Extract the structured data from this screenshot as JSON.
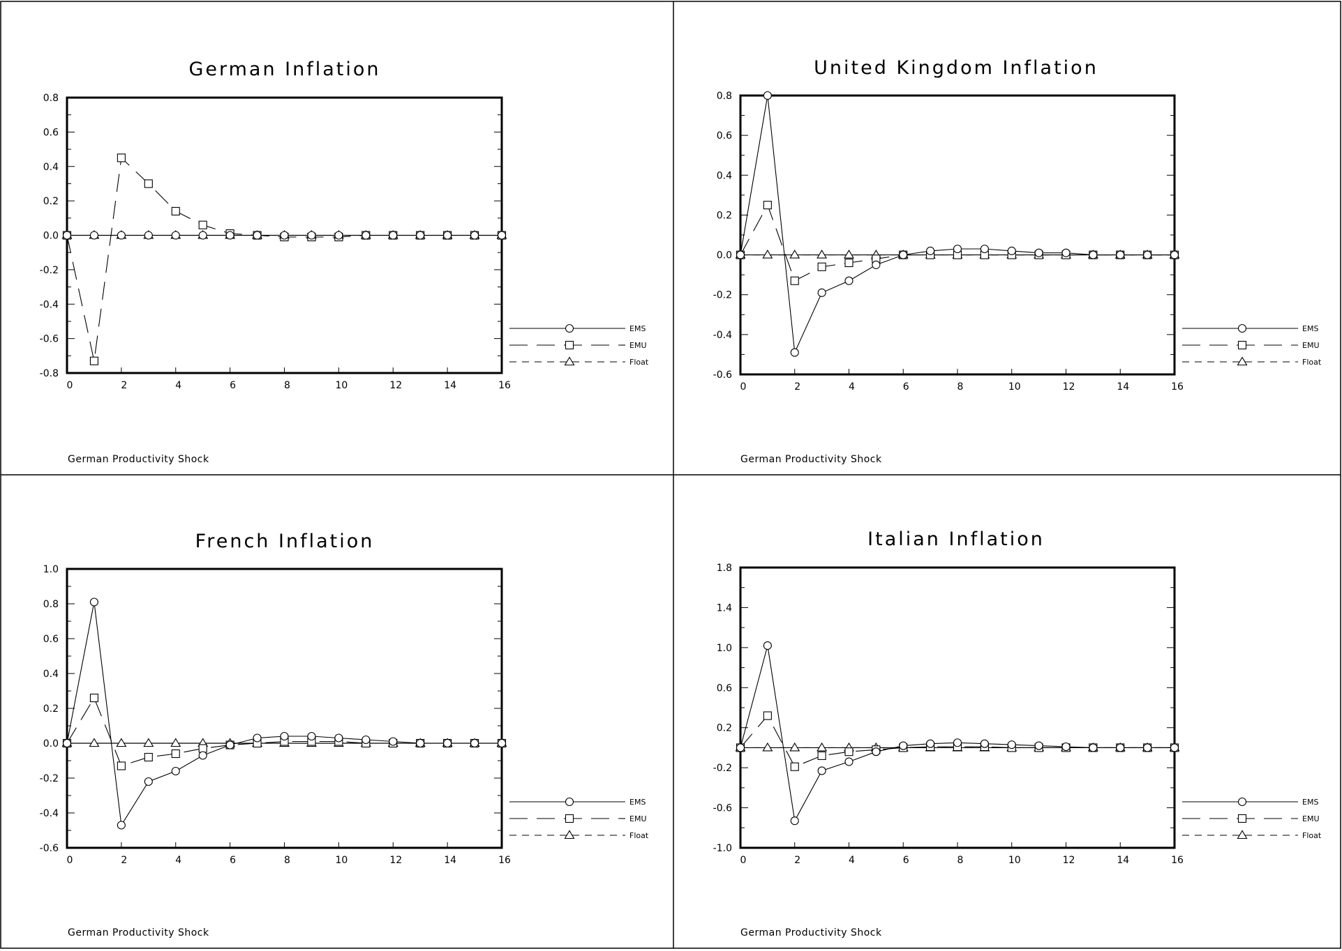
{
  "chart_data": [
    {
      "type": "line",
      "title": "German Inflation",
      "footnote": "German Productivity Shock",
      "ylim": [
        -0.8,
        0.8
      ],
      "yticks": [
        "0.8",
        "0.6",
        "0.4",
        "0.2",
        "0.0",
        "-0.2",
        "-0.4",
        "-0.6",
        "-0.8"
      ],
      "xlim": [
        0,
        16
      ],
      "xticks": [
        "0",
        "2",
        "4",
        "6",
        "8",
        "10",
        "12",
        "14",
        "16"
      ],
      "x": [
        0,
        1,
        2,
        3,
        4,
        5,
        6,
        7,
        8,
        9,
        10,
        11,
        12,
        13,
        14,
        15,
        16
      ],
      "legend": "right",
      "series": [
        {
          "name": "EMS",
          "marker": "circle",
          "values": [
            0,
            0,
            0,
            0,
            0,
            0,
            0,
            0,
            0,
            0,
            0,
            0,
            0,
            0,
            0,
            0,
            0
          ]
        },
        {
          "name": "EMU",
          "marker": "square",
          "values": [
            0,
            -0.73,
            0.45,
            0.3,
            0.14,
            0.06,
            0.01,
            0,
            -0.01,
            -0.01,
            -0.01,
            0,
            0,
            0,
            0,
            0,
            0
          ]
        },
        {
          "name": "Float",
          "marker": "triangle",
          "values": [
            0,
            0,
            0,
            0,
            0,
            0,
            0,
            0,
            0,
            0,
            0,
            0,
            0,
            0,
            0,
            0,
            0
          ]
        }
      ]
    },
    {
      "type": "line",
      "title": "United Kingdom Inflation",
      "footnote": "German Productivity Shock",
      "ylim": [
        -0.6,
        0.8
      ],
      "yticks": [
        "0.8",
        "0.6",
        "0.4",
        "0.2",
        "0.0",
        "-0.2",
        "-0.4",
        "-0.6"
      ],
      "xlim": [
        0,
        16
      ],
      "xticks": [
        "0",
        "2",
        "4",
        "6",
        "8",
        "10",
        "12",
        "14",
        "16"
      ],
      "x": [
        0,
        1,
        2,
        3,
        4,
        5,
        6,
        7,
        8,
        9,
        10,
        11,
        12,
        13,
        14,
        15,
        16
      ],
      "legend": "right",
      "series": [
        {
          "name": "EMS",
          "marker": "circle",
          "values": [
            0,
            0.8,
            -0.49,
            -0.19,
            -0.13,
            -0.05,
            0,
            0.02,
            0.03,
            0.03,
            0.02,
            0.01,
            0.01,
            0,
            0,
            0,
            0
          ]
        },
        {
          "name": "EMU",
          "marker": "square",
          "values": [
            0,
            0.25,
            -0.13,
            -0.06,
            -0.04,
            -0.02,
            0,
            0,
            0,
            0,
            0,
            0,
            0,
            0,
            0,
            0,
            0
          ]
        },
        {
          "name": "Float",
          "marker": "triangle",
          "values": [
            0,
            0,
            0,
            0,
            0,
            0,
            0,
            0,
            0,
            0,
            0,
            0,
            0,
            0,
            0,
            0,
            0
          ]
        }
      ]
    },
    {
      "type": "line",
      "title": "French Inflation",
      "footnote": "German Productivity Shock",
      "ylim": [
        -0.6,
        1.0
      ],
      "yticks": [
        "1.0",
        "0.8",
        "0.6",
        "0.4",
        "0.2",
        "0.0",
        "-0.2",
        "-0.4",
        "-0.6"
      ],
      "xlim": [
        0,
        16
      ],
      "xticks": [
        "0",
        "2",
        "4",
        "6",
        "8",
        "10",
        "12",
        "14",
        "16"
      ],
      "x": [
        0,
        1,
        2,
        3,
        4,
        5,
        6,
        7,
        8,
        9,
        10,
        11,
        12,
        13,
        14,
        15,
        16
      ],
      "legend": "right",
      "series": [
        {
          "name": "EMS",
          "marker": "circle",
          "values": [
            0,
            0.81,
            -0.47,
            -0.22,
            -0.16,
            -0.07,
            -0.01,
            0.03,
            0.04,
            0.04,
            0.03,
            0.02,
            0.01,
            0,
            0,
            0,
            0
          ]
        },
        {
          "name": "EMU",
          "marker": "square",
          "values": [
            0,
            0.26,
            -0.13,
            -0.08,
            -0.06,
            -0.03,
            -0.01,
            0,
            0.01,
            0.01,
            0.01,
            0,
            0,
            0,
            0,
            0,
            0
          ]
        },
        {
          "name": "Float",
          "marker": "triangle",
          "values": [
            0,
            0,
            0,
            0,
            0,
            0,
            0,
            0,
            0,
            0,
            0,
            0,
            0,
            0,
            0,
            0,
            0
          ]
        }
      ]
    },
    {
      "type": "line",
      "title": "Italian Inflation",
      "footnote": "German Productivity Shock",
      "ylim": [
        -1.0,
        1.8
      ],
      "yticks": [
        "1.8",
        "1.4",
        "1.0",
        "0.6",
        "0.2",
        "-0.2",
        "-0.6",
        "-1.0"
      ],
      "xlim": [
        0,
        16
      ],
      "xticks": [
        "0",
        "2",
        "4",
        "6",
        "8",
        "10",
        "12",
        "14",
        "16"
      ],
      "x": [
        0,
        1,
        2,
        3,
        4,
        5,
        6,
        7,
        8,
        9,
        10,
        11,
        12,
        13,
        14,
        15,
        16
      ],
      "legend": "right",
      "series": [
        {
          "name": "EMS",
          "marker": "circle",
          "values": [
            0,
            1.02,
            -0.73,
            -0.23,
            -0.14,
            -0.04,
            0.02,
            0.04,
            0.05,
            0.04,
            0.03,
            0.02,
            0.01,
            0,
            0,
            0,
            0
          ]
        },
        {
          "name": "EMU",
          "marker": "square",
          "values": [
            0,
            0.32,
            -0.19,
            -0.08,
            -0.04,
            -0.02,
            0,
            0.01,
            0.01,
            0.01,
            0,
            0,
            0,
            0,
            0,
            0,
            0
          ]
        },
        {
          "name": "Float",
          "marker": "triangle",
          "values": [
            0,
            0,
            0,
            0,
            0,
            0,
            0,
            0,
            0,
            0,
            0,
            0,
            0,
            0,
            0,
            0,
            0
          ]
        }
      ]
    }
  ]
}
